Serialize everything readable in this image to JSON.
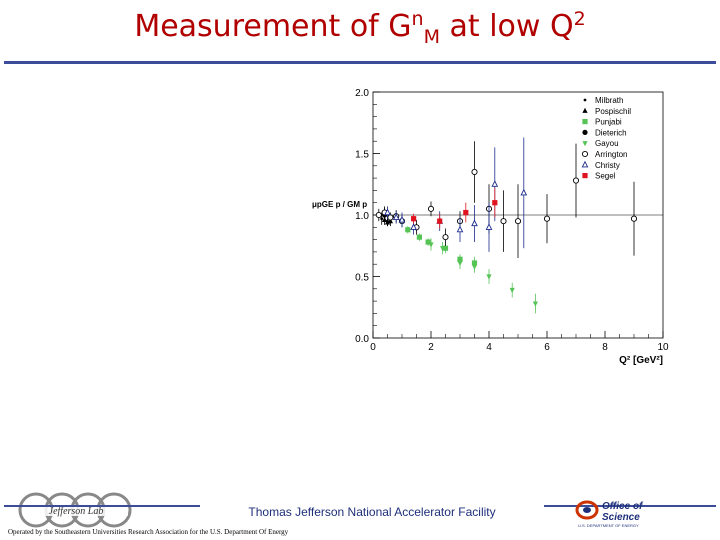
{
  "slide": {
    "title_main": "Measurement of G",
    "title_sup_n": "n",
    "title_sub_m": "M",
    "title_mid": " at low Q",
    "title_sup_2": "2",
    "footer_center": "Thomas Jefferson National Accelerator Facility",
    "footer_note": "Operated by the Southeastern Universities Research Association for the U.S. Department Of Energy",
    "logo_left_text": "Jefferson Lab",
    "logo_right_line1": "Office of",
    "logo_right_line2": "Science",
    "logo_right_line3": "U.S. DEPARTMENT OF ENERGY"
  },
  "colors": {
    "title": "#b00000",
    "rule": "#3a4c9a",
    "black": "#000000",
    "green": "#55c455",
    "blue": "#1a2a8c",
    "red": "#e0141e"
  },
  "chart_data": {
    "type": "scatter",
    "xlim": [
      0,
      10
    ],
    "ylim": [
      0,
      2
    ],
    "xticks": [
      "0",
      "2",
      "4",
      "6",
      "8",
      "10"
    ],
    "yticks": [
      "0.0",
      "0.5",
      "1.0",
      "1.5",
      "2.0"
    ],
    "xlabel": "Q² [GeV²]",
    "ylabel": "μpGE p / GM p",
    "reference_line": 1.0,
    "legend_position": "top-right",
    "series": [
      {
        "name": "Milbrath",
        "marker": "small-dot",
        "color": "#000000",
        "points": [
          [
            0.3,
            0.97,
            0.05
          ],
          [
            0.5,
            0.95,
            0.04
          ]
        ]
      },
      {
        "name": "Pospischil",
        "marker": "filled-triangle",
        "color": "#000000",
        "points": [
          [
            0.4,
            0.96,
            0.04
          ],
          [
            0.5,
            0.94,
            0.03
          ],
          [
            0.6,
            0.95,
            0.04
          ]
        ]
      },
      {
        "name": "Punjabi",
        "marker": "filled-square",
        "color": "#55c455",
        "points": [
          [
            1.2,
            0.88,
            0.03
          ],
          [
            1.6,
            0.82,
            0.03
          ],
          [
            1.9,
            0.78,
            0.03
          ],
          [
            2.5,
            0.73,
            0.04
          ],
          [
            3.0,
            0.64,
            0.04
          ],
          [
            3.5,
            0.61,
            0.05
          ]
        ]
      },
      {
        "name": "Dieterich",
        "marker": "filled-circle",
        "color": "#000000",
        "points": [
          [
            0.4,
            1.0,
            0.06
          ]
        ]
      },
      {
        "name": "Gayou",
        "marker": "filled-down-triangle",
        "color": "#55c455",
        "points": [
          [
            2.0,
            0.76,
            0.05
          ],
          [
            2.4,
            0.73,
            0.05
          ],
          [
            3.0,
            0.61,
            0.05
          ],
          [
            3.5,
            0.58,
            0.05
          ],
          [
            4.0,
            0.5,
            0.06
          ],
          [
            4.8,
            0.39,
            0.06
          ],
          [
            5.6,
            0.28,
            0.08
          ]
        ]
      },
      {
        "name": "Arrington",
        "marker": "open-circle",
        "color": "#000000",
        "points": [
          [
            0.2,
            1.0,
            0.05
          ],
          [
            0.4,
            1.02,
            0.05
          ],
          [
            0.6,
            0.98,
            0.04
          ],
          [
            0.8,
            0.99,
            0.05
          ],
          [
            1.0,
            0.95,
            0.05
          ],
          [
            1.5,
            0.9,
            0.06
          ],
          [
            2.0,
            1.05,
            0.06
          ],
          [
            2.5,
            0.82,
            0.07
          ],
          [
            3.0,
            0.95,
            0.08
          ],
          [
            3.5,
            1.35,
            0.25
          ],
          [
            4.0,
            1.05,
            0.2
          ],
          [
            4.5,
            0.95,
            0.25
          ],
          [
            5.0,
            0.95,
            0.3
          ],
          [
            6.0,
            0.97,
            0.2
          ],
          [
            7.0,
            1.28,
            0.3
          ],
          [
            9.0,
            0.97,
            0.3
          ]
        ]
      },
      {
        "name": "Christy",
        "marker": "open-triangle",
        "color": "#1a2a8c",
        "points": [
          [
            0.5,
            1.02,
            0.05
          ],
          [
            0.8,
            0.98,
            0.05
          ],
          [
            1.0,
            0.96,
            0.06
          ],
          [
            1.4,
            0.9,
            0.06
          ],
          [
            2.3,
            0.95,
            0.08
          ],
          [
            3.0,
            0.88,
            0.1
          ],
          [
            3.5,
            0.93,
            0.15
          ],
          [
            4.0,
            0.9,
            0.2
          ],
          [
            4.2,
            1.25,
            0.3
          ],
          [
            5.2,
            1.18,
            0.45
          ]
        ]
      },
      {
        "name": "Segel",
        "marker": "filled-square",
        "color": "#e0141e",
        "points": [
          [
            1.4,
            0.97,
            0.04
          ],
          [
            2.3,
            0.95,
            0.06
          ],
          [
            3.2,
            1.02,
            0.08
          ],
          [
            4.2,
            1.1,
            0.12
          ]
        ]
      }
    ]
  }
}
